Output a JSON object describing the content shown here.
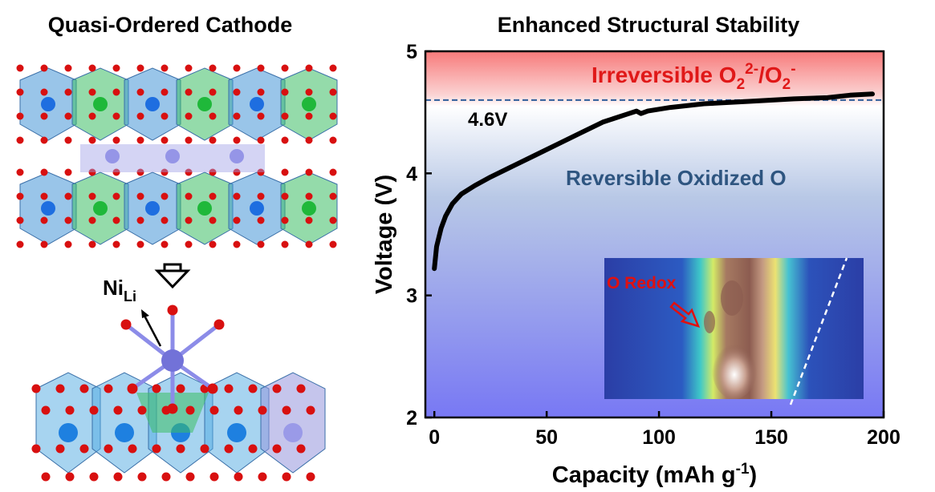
{
  "left_panel": {
    "title": "Quasi-Ordered Cathode",
    "site_label": {
      "text": "Ni",
      "subscript": "Li"
    }
  },
  "chart_data": {
    "type": "line",
    "title": "Enhanced Structural Stability",
    "x_label": {
      "text": "Capacity (mAh g",
      "superscript": "-1",
      "suffix": ")"
    },
    "y_label": "Voltage (V)",
    "x": [
      0,
      1,
      3,
      5,
      8,
      12,
      18,
      25,
      35,
      45,
      55,
      65,
      75,
      85,
      90,
      92,
      95,
      105,
      120,
      140,
      160,
      175,
      185,
      195
    ],
    "values": [
      3.22,
      3.4,
      3.55,
      3.65,
      3.75,
      3.83,
      3.9,
      3.97,
      4.06,
      4.15,
      4.24,
      4.33,
      4.42,
      4.48,
      4.51,
      4.49,
      4.51,
      4.54,
      4.57,
      4.59,
      4.61,
      4.62,
      4.64,
      4.65
    ],
    "color": "#000000",
    "xlim": [
      -4,
      200
    ],
    "ylim": [
      2,
      5
    ],
    "xticks": [
      0,
      50,
      100,
      150,
      200
    ],
    "yticks": [
      2,
      3,
      4,
      5
    ],
    "reference_line": {
      "value": 4.6,
      "label": "4.6V",
      "color": "#2e5c9a"
    },
    "irreversible_label": [
      {
        "text": "Irreversible O"
      },
      {
        "text": "2",
        "shift": "sub"
      },
      {
        "text": "2-",
        "shift": "sup"
      },
      {
        "text": "/O"
      },
      {
        "text": "2",
        "shift": "sub"
      },
      {
        "text": "-",
        "shift": "sup"
      }
    ],
    "reversible_label": "Reversible Oxidized O",
    "inset_label": "O Redox"
  }
}
